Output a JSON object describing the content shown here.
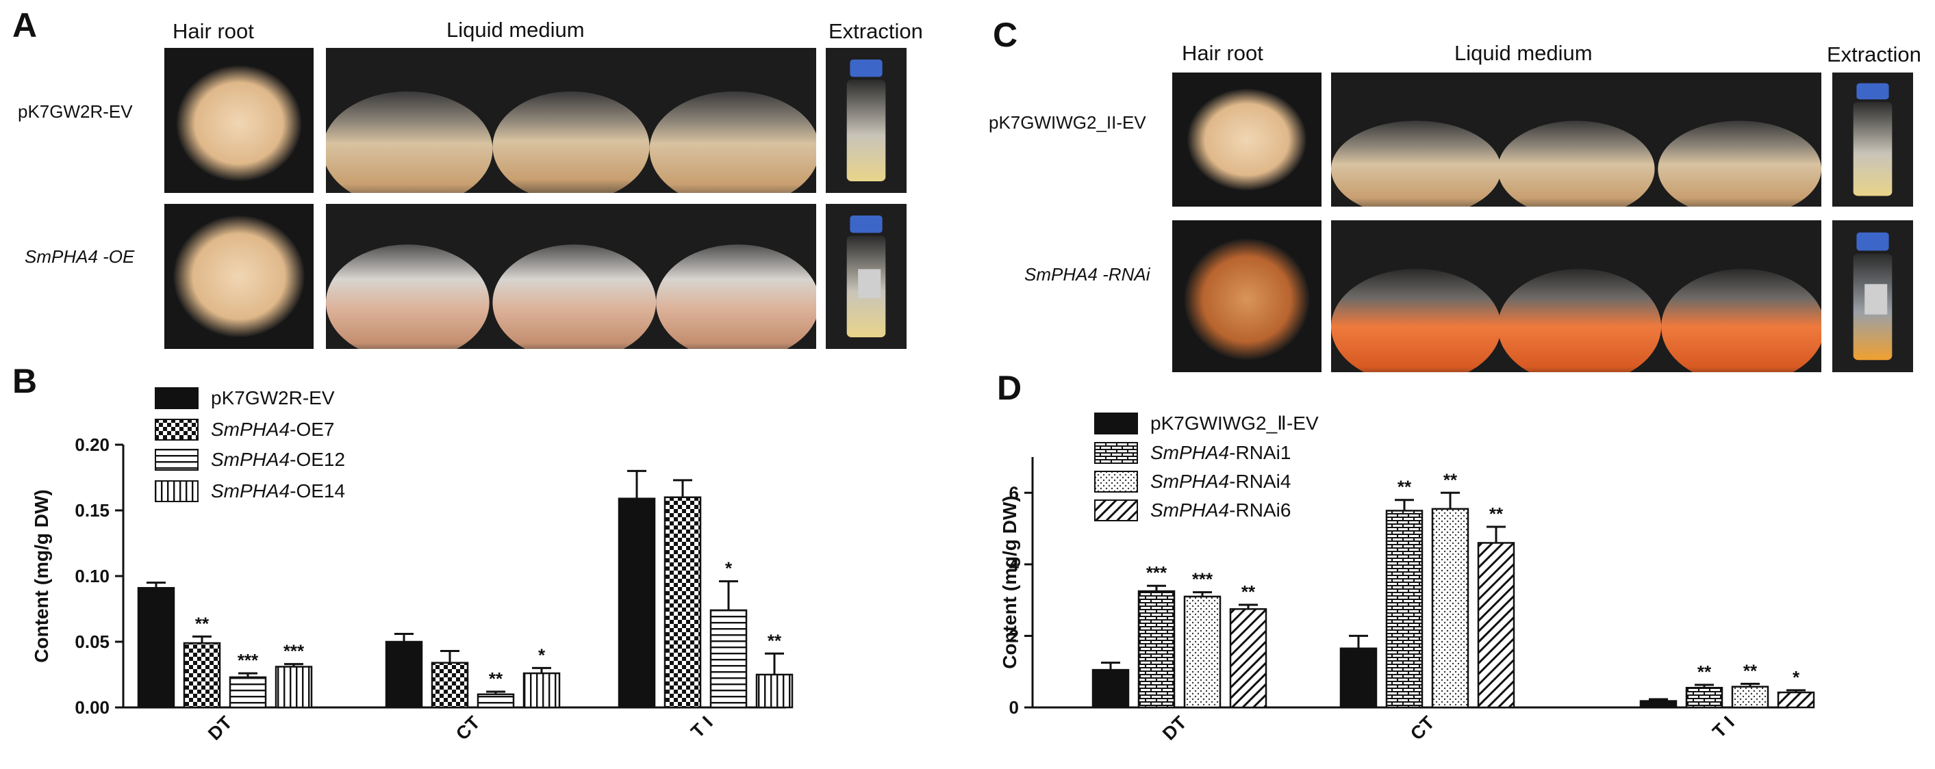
{
  "panel_a": {
    "label": "A",
    "col_headers": {
      "hair_root": "Hair root",
      "liquid_medium": "Liquid medium",
      "extraction": "Extraction"
    },
    "rows": [
      {
        "label": "pK7GW2R-EV",
        "italic": false
      },
      {
        "label": "SmPHA4 -OE",
        "italic": true
      }
    ]
  },
  "panel_c": {
    "label": "C",
    "col_headers": {
      "hair_root": "Hair root",
      "liquid_medium": "Liquid medium",
      "extraction": "Extraction"
    },
    "rows": [
      {
        "label": "pK7GWIWG2_II-EV",
        "italic": false
      },
      {
        "label": "SmPHA4 -RNAi",
        "italic": true
      }
    ]
  },
  "panel_b": {
    "label": "B"
  },
  "panel_d": {
    "label": "D"
  },
  "chart_data": [
    {
      "type": "bar",
      "panel": "B",
      "ylabel": "Content (mg/g DW)",
      "ylim": [
        0,
        0.2
      ],
      "yticks": [
        "0.00",
        "0.05",
        "0.10",
        "0.15",
        "0.20"
      ],
      "categories": [
        "DT",
        "CT",
        "T I"
      ],
      "series": [
        {
          "name": "pK7GW2R-EV",
          "gene": "",
          "suffix": "pK7GW2R-EV",
          "pattern": "solid",
          "values": [
            0.091,
            0.05,
            0.159
          ],
          "errors": [
            0.004,
            0.006,
            0.021
          ],
          "sig": [
            "",
            "",
            ""
          ]
        },
        {
          "name": "SmPHA4-OE7",
          "gene": "SmPHA4",
          "suffix": "-OE7",
          "pattern": "checker",
          "values": [
            0.049,
            0.034,
            0.16
          ],
          "errors": [
            0.005,
            0.009,
            0.013
          ],
          "sig": [
            "**",
            "",
            ""
          ]
        },
        {
          "name": "SmPHA4-OE12",
          "gene": "SmPHA4",
          "suffix": "-OE12",
          "pattern": "hlines",
          "values": [
            0.023,
            0.01,
            0.074
          ],
          "errors": [
            0.003,
            0.002,
            0.022
          ],
          "sig": [
            "***",
            "**",
            "*"
          ]
        },
        {
          "name": "SmPHA4-OE14",
          "gene": "SmPHA4",
          "suffix": "-OE14",
          "pattern": "vlines",
          "values": [
            0.031,
            0.026,
            0.025
          ],
          "errors": [
            0.002,
            0.004,
            0.016
          ],
          "sig": [
            "***",
            "*",
            "**"
          ]
        }
      ]
    },
    {
      "type": "bar",
      "panel": "D",
      "ylabel": "Content (mg/g DW)",
      "ylim": [
        0,
        7
      ],
      "yticks": [
        "0",
        "2",
        "4",
        "6"
      ],
      "categories": [
        "DT",
        "CT",
        "T I"
      ],
      "series": [
        {
          "name": "pK7GWIWG2_Ⅱ-EV",
          "gene": "",
          "suffix": "pK7GWIWG2_Ⅱ-EV",
          "pattern": "solid",
          "values": [
            1.05,
            1.65,
            0.18
          ],
          "errors": [
            0.2,
            0.35,
            0.05
          ],
          "sig": [
            "",
            "",
            ""
          ]
        },
        {
          "name": "SmPHA4-RNAi1",
          "gene": "SmPHA4",
          "suffix": "-RNAi1",
          "pattern": "brick",
          "values": [
            3.25,
            5.5,
            0.55
          ],
          "errors": [
            0.15,
            0.3,
            0.08
          ],
          "sig": [
            "***",
            "**",
            "**"
          ]
        },
        {
          "name": "SmPHA4-RNAi4",
          "gene": "SmPHA4",
          "suffix": "-RNAi4",
          "pattern": "dots",
          "values": [
            3.1,
            5.55,
            0.58
          ],
          "errors": [
            0.12,
            0.45,
            0.08
          ],
          "sig": [
            "***",
            "**",
            "**"
          ]
        },
        {
          "name": "SmPHA4-RNAi6",
          "gene": "SmPHA4",
          "suffix": "-RNAi6",
          "pattern": "diag",
          "values": [
            2.75,
            4.6,
            0.42
          ],
          "errors": [
            0.12,
            0.45,
            0.06
          ],
          "sig": [
            "**",
            "**",
            "*"
          ]
        }
      ]
    }
  ]
}
